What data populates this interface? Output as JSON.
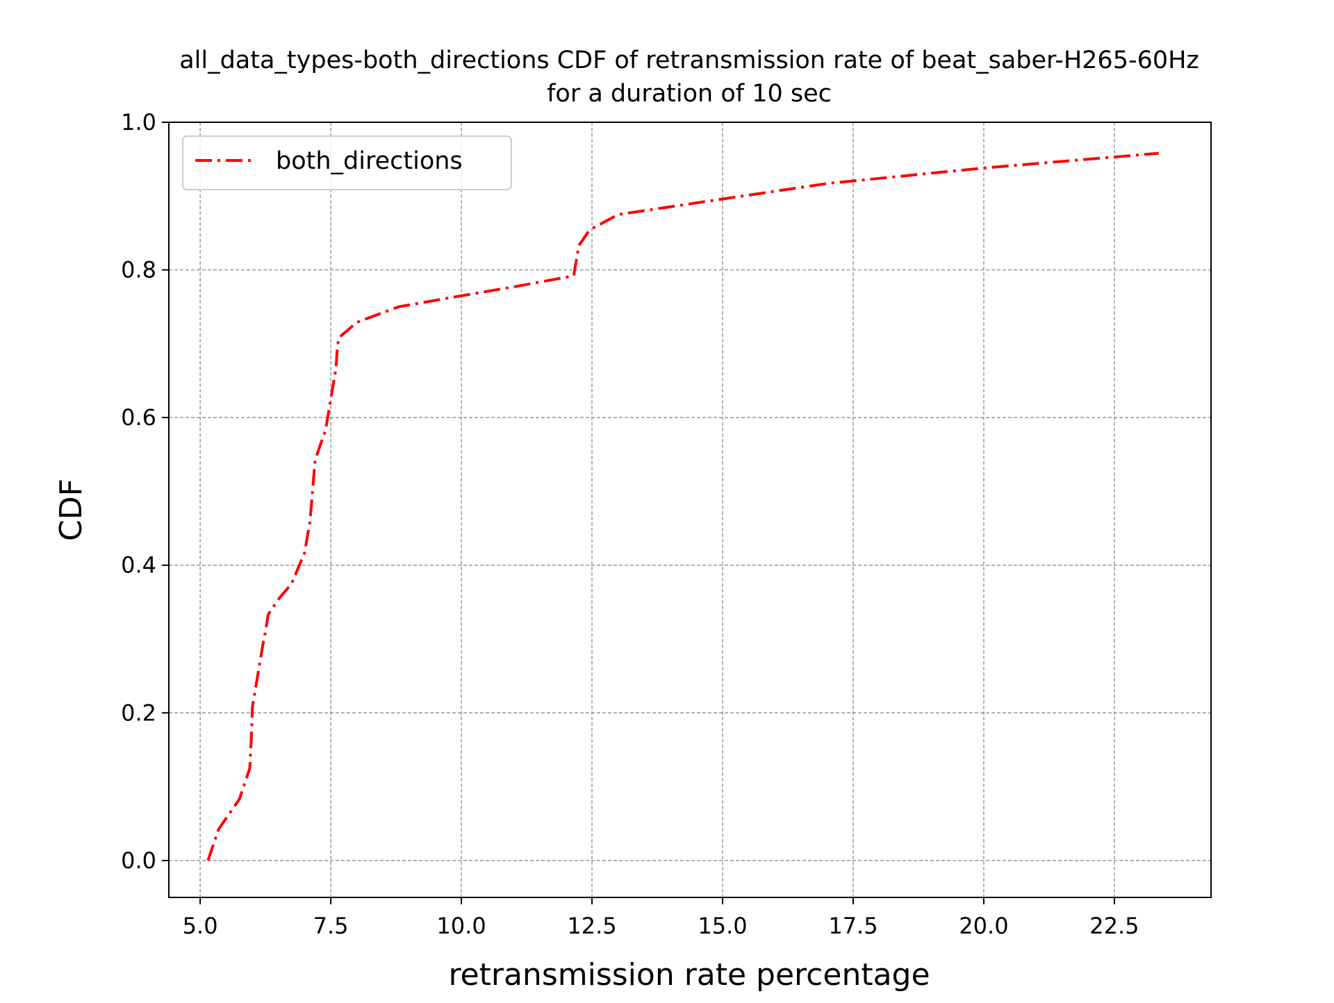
{
  "chart_data": {
    "type": "line",
    "title_line1": "all_data_types-both_directions CDF of retransmission rate of beat_saber-H265-60Hz",
    "title_line2": "for a duration of 10 sec",
    "xlabel": "retransmission rate percentage",
    "ylabel": "CDF",
    "xlim": [
      4.4,
      24.35
    ],
    "ylim": [
      -0.05,
      1.0
    ],
    "x_ticks": [
      5.0,
      7.5,
      10.0,
      12.5,
      15.0,
      17.5,
      20.0,
      22.5
    ],
    "x_tick_labels": [
      "5.0",
      "7.5",
      "10.0",
      "12.5",
      "15.0",
      "17.5",
      "20.0",
      "22.5"
    ],
    "y_ticks": [
      0.0,
      0.2,
      0.4,
      0.6,
      0.8,
      1.0
    ],
    "y_tick_labels": [
      "0.0",
      "0.2",
      "0.4",
      "0.6",
      "0.8",
      "1.0"
    ],
    "grid": true,
    "legend_position": "upper-left",
    "series": [
      {
        "name": "both_directions",
        "color": "#ff0000",
        "line_style": "dash-dot",
        "x": [
          5.15,
          5.35,
          5.75,
          5.95,
          5.98,
          6.0,
          6.1,
          6.2,
          6.25,
          6.3,
          6.5,
          6.75,
          7.0,
          7.05,
          7.1,
          7.15,
          7.2,
          7.3,
          7.4,
          7.5,
          7.55,
          7.6,
          7.62,
          7.65,
          8.0,
          8.8,
          10.0,
          11.0,
          12.15,
          12.25,
          12.45,
          13.0,
          15.0,
          17.0,
          20.0,
          23.35
        ],
        "y": [
          0.0,
          0.042,
          0.083,
          0.125,
          0.167,
          0.208,
          0.25,
          0.292,
          0.31,
          0.333,
          0.354,
          0.375,
          0.417,
          0.438,
          0.458,
          0.5,
          0.542,
          0.563,
          0.583,
          0.625,
          0.646,
          0.667,
          0.688,
          0.708,
          0.729,
          0.75,
          0.765,
          0.777,
          0.792,
          0.833,
          0.854,
          0.875,
          0.896,
          0.917,
          0.938,
          0.958
        ]
      }
    ]
  }
}
